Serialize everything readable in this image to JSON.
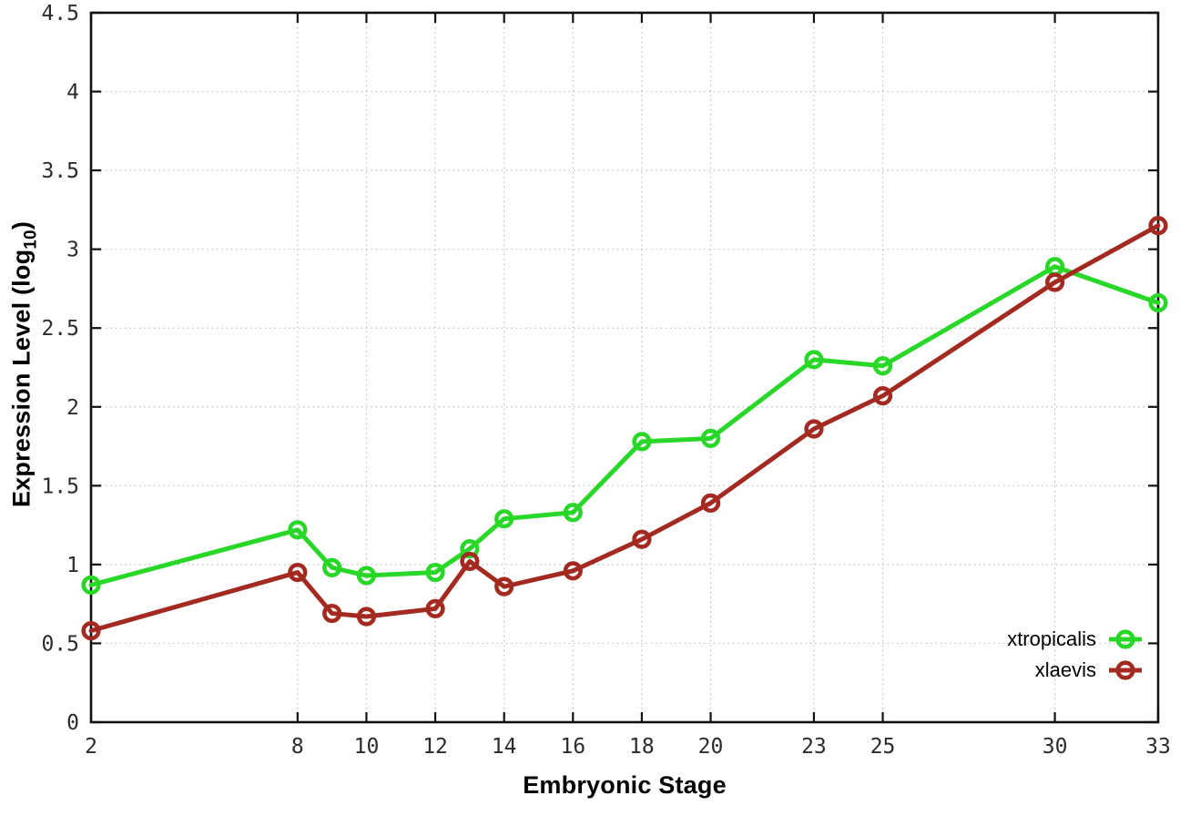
{
  "chart_data": {
    "type": "line",
    "title": "",
    "xlabel": "Embryonic Stage",
    "ylabel": "Expression Level (log10)",
    "ylabel_parts": {
      "pre": "Expression Level (log",
      "sub": "10",
      "post": ")"
    },
    "xlim": [
      2,
      33
    ],
    "ylim": [
      0,
      4.5
    ],
    "x_ticks": [
      2,
      8,
      10,
      12,
      14,
      16,
      18,
      20,
      23,
      25,
      30,
      33
    ],
    "y_ticks": [
      0,
      0.5,
      1,
      1.5,
      2,
      2.5,
      3,
      3.5,
      4,
      4.5
    ],
    "grid": "dotted",
    "legend_position": "inside-bottom-right",
    "x": [
      2,
      8,
      9,
      10,
      12,
      13,
      14,
      16,
      18,
      20,
      23,
      25,
      30,
      33
    ],
    "series": [
      {
        "name": "xtropicalis",
        "color": "#28d728",
        "values": [
          0.87,
          1.22,
          0.98,
          0.93,
          0.95,
          1.1,
          1.29,
          1.33,
          1.78,
          1.8,
          2.3,
          2.26,
          2.89,
          2.66
        ]
      },
      {
        "name": "xlaevis",
        "color": "#a32a21",
        "values": [
          0.58,
          0.95,
          0.69,
          0.67,
          0.72,
          1.02,
          0.86,
          0.96,
          1.16,
          1.39,
          1.86,
          2.07,
          2.79,
          3.15
        ]
      }
    ]
  },
  "style": {
    "background": "#ffffff",
    "axis_color": "#111111",
    "grid_color": "#bcbcbc",
    "tick_label_color": "#2b2b2b"
  }
}
